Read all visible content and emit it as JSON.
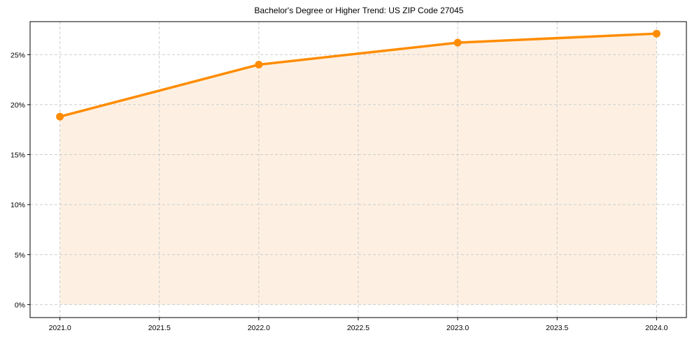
{
  "chart_data": {
    "type": "line",
    "title": "Bachelor's Degree or Higher Trend: US ZIP Code 27045",
    "xlabel": "",
    "ylabel": "",
    "x": [
      2021,
      2022,
      2023,
      2024
    ],
    "series": [
      {
        "name": "Bachelor's Degree or Higher",
        "values": [
          18.8,
          24.0,
          26.2,
          27.1
        ],
        "color": "#ff8c00",
        "marker": "circle",
        "fill_to_zero": true,
        "fill_color": "#fdf0e3"
      }
    ],
    "xticks": [
      2021.0,
      2021.5,
      2022.0,
      2022.5,
      2023.0,
      2023.5,
      2024.0
    ],
    "xtick_labels": [
      "2021.0",
      "2021.5",
      "2022.0",
      "2022.5",
      "2023.0",
      "2023.5",
      "2024.0"
    ],
    "yticks": [
      0,
      5,
      10,
      15,
      20,
      25
    ],
    "ytick_labels": [
      "0%",
      "5%",
      "10%",
      "15%",
      "20%",
      "25%"
    ],
    "xlim": [
      2020.85,
      2024.15
    ],
    "ylim": [
      -1.3,
      28.3
    ],
    "grid": true,
    "legend": null
  }
}
